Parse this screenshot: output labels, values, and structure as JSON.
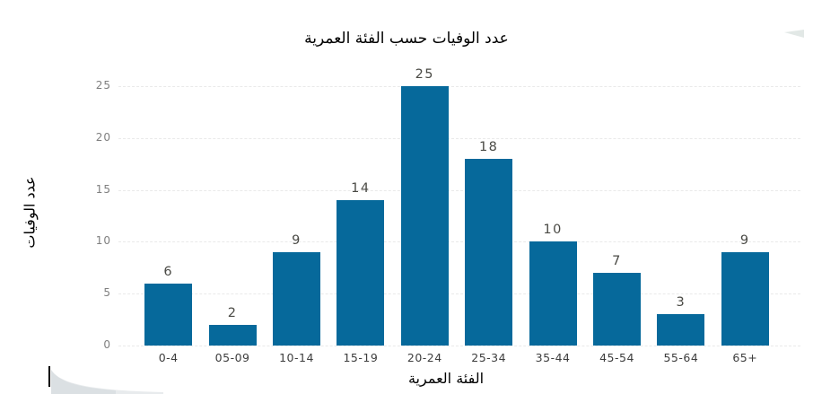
{
  "chart_data": {
    "type": "bar",
    "title": "عدد الوفيات حسب الفئة العمرية",
    "xlabel": "الفئة العمرية",
    "ylabel": "عدد الوفيات",
    "categories": [
      "0-4",
      "05-09",
      "10-14",
      "15-19",
      "20-24",
      "25-34",
      "35-44",
      "45-54",
      "55-64",
      "65+"
    ],
    "values": [
      6,
      2,
      9,
      14,
      25,
      18,
      10,
      7,
      3,
      9
    ],
    "yticks": [
      0,
      5,
      10,
      15,
      20,
      25
    ],
    "ylim": [
      0,
      25
    ],
    "grid": "horizontal-dashed",
    "legend": "none",
    "bar_color": "#06699b"
  },
  "colors": {
    "bar": "#06699b",
    "gridline": "#e9e9e9",
    "y_tick_label": "#7f7f7f",
    "category_label": "#3d3d3d",
    "data_label": "#4a4a45",
    "title": "#000000",
    "background": "#ffffff"
  }
}
